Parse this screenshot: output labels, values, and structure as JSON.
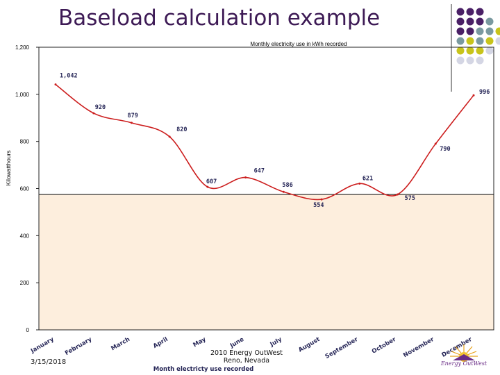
{
  "slide": {
    "title": "Baseload calculation example",
    "footer_date": "3/15/2018",
    "footer_center_line1": "2010 Energy OutWest",
    "footer_center_line2": "Reno, Nevada",
    "logo_text": "Energy OutWest"
  },
  "colors": {
    "title": "#3d1a55",
    "series_line": "#cc1d1d",
    "baseload_fill": "#fdeedd",
    "data_label": "#262657",
    "dot_purple": "#4a2066",
    "dot_teal": "#7a9aa0",
    "dot_yellow": "#c8c41a",
    "dot_light": "#d4d6e4"
  },
  "chart_data": {
    "type": "line",
    "title": "Monthly electricity use in kWh recorded",
    "xlabel": "Month electricty use  recorded",
    "ylabel": "Kilowatthours",
    "ylim": [
      0,
      1200
    ],
    "yticks": [
      0,
      200,
      400,
      600,
      800,
      1000,
      1200
    ],
    "ytick_labels": [
      "0",
      "200",
      "400",
      "600",
      "800",
      "1,000",
      "1,200"
    ],
    "categories": [
      "January",
      "February",
      "March",
      "April",
      "May",
      "June",
      "July",
      "August",
      "September",
      "October",
      "November",
      "December"
    ],
    "series": [
      {
        "name": "Monthly electricity use",
        "values": [
          1042,
          920,
          879,
          820,
          607,
          647,
          586,
          554,
          621,
          575,
          790,
          996
        ],
        "labels": [
          "1,042",
          "920",
          "879",
          "820",
          "607",
          "647",
          "586",
          "554",
          "621",
          "575",
          "790",
          "996"
        ]
      }
    ],
    "baseload": 575
  }
}
